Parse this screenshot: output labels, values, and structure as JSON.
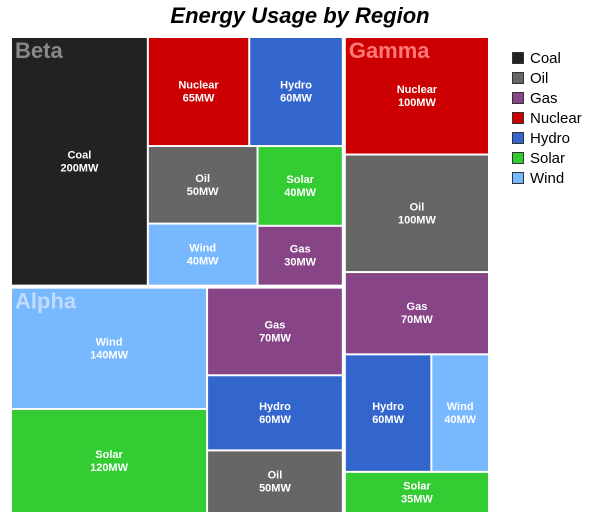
{
  "chart_data": {
    "type": "treemap",
    "title": "Energy Usage by Region",
    "unit": "MW",
    "colors": {
      "Coal": "#222222",
      "Oil": "#666666",
      "Gas": "#874487",
      "Nuclear": "#cc0000",
      "Hydro": "#3366cc",
      "Solar": "#33cc33",
      "Wind": "#77b8ff"
    },
    "region_label_colors": {
      "Beta": "#888888",
      "Gamma": "#ff7777",
      "Alpha": "#c2dcff"
    },
    "legend": [
      "Coal",
      "Oil",
      "Gas",
      "Nuclear",
      "Hydro",
      "Solar",
      "Wind"
    ],
    "legend_placement": "top-right",
    "regions": [
      {
        "name": "Beta",
        "items": [
          {
            "source": "Coal",
            "value": 200
          },
          {
            "source": "Nuclear",
            "value": 65
          },
          {
            "source": "Hydro",
            "value": 60
          },
          {
            "source": "Oil",
            "value": 50
          },
          {
            "source": "Solar",
            "value": 40
          },
          {
            "source": "Wind",
            "value": 40
          },
          {
            "source": "Gas",
            "value": 30
          }
        ]
      },
      {
        "name": "Gamma",
        "items": [
          {
            "source": "Nuclear",
            "value": 100
          },
          {
            "source": "Oil",
            "value": 100
          },
          {
            "source": "Gas",
            "value": 70
          },
          {
            "source": "Hydro",
            "value": 60
          },
          {
            "source": "Wind",
            "value": 40
          },
          {
            "source": "Solar",
            "value": 35
          }
        ]
      },
      {
        "name": "Alpha",
        "items": [
          {
            "source": "Wind",
            "value": 140
          },
          {
            "source": "Solar",
            "value": 120
          },
          {
            "source": "Gas",
            "value": 70
          },
          {
            "source": "Hydro",
            "value": 60
          },
          {
            "source": "Oil",
            "value": 50
          }
        ]
      }
    ]
  }
}
